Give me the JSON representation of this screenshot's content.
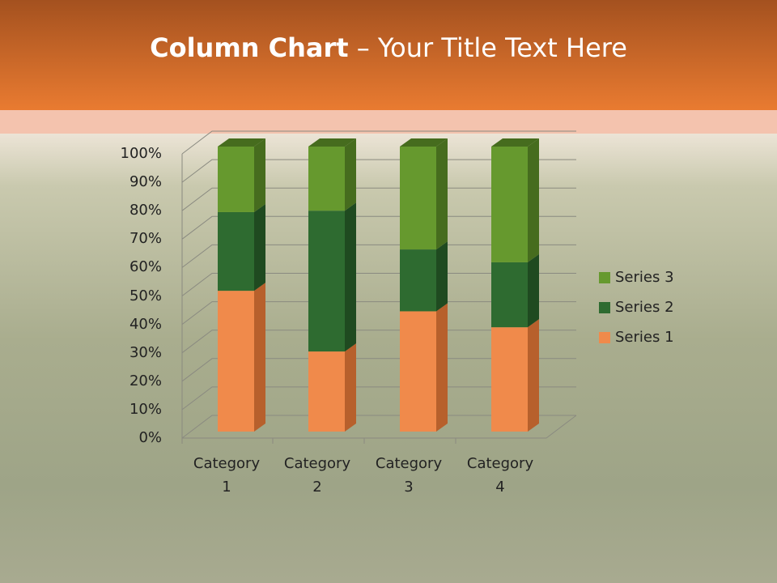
{
  "chart_data": {
    "type": "stacked_bar_3d",
    "title_parts": [
      "Column Chart",
      "– Your Title Text Here"
    ],
    "categories": [
      "Category 1",
      "Category 2",
      "Category 3",
      "Category 4"
    ],
    "series": [
      {
        "name": "Series 1",
        "color": "#f08a4b",
        "side": "#b7602c",
        "values": [
          49.4,
          28.1,
          42.2,
          36.6
        ]
      },
      {
        "name": "Series 2",
        "color": "#2e6b30",
        "side": "#1f4a20",
        "values": [
          27.6,
          49.4,
          21.7,
          22.8
        ]
      },
      {
        "name": "Series 3",
        "color": "#66992e",
        "side": "#466c1e",
        "values": [
          23.0,
          22.5,
          36.1,
          40.6
        ]
      }
    ],
    "ylim": [
      0,
      100
    ],
    "yticks": [
      {
        "value": 0,
        "label": "0%"
      },
      {
        "value": 10,
        "label": "10%"
      },
      {
        "value": 20,
        "label": "20%"
      },
      {
        "value": 30,
        "label": "30%"
      },
      {
        "value": 40,
        "label": "40%"
      },
      {
        "value": 50,
        "label": "50%"
      },
      {
        "value": 60,
        "label": "60%"
      },
      {
        "value": 70,
        "label": "70%"
      },
      {
        "value": 80,
        "label": "80%"
      },
      {
        "value": 90,
        "label": "90%"
      },
      {
        "value": 100,
        "label": "100%"
      }
    ],
    "grid": true,
    "legend": "right"
  }
}
